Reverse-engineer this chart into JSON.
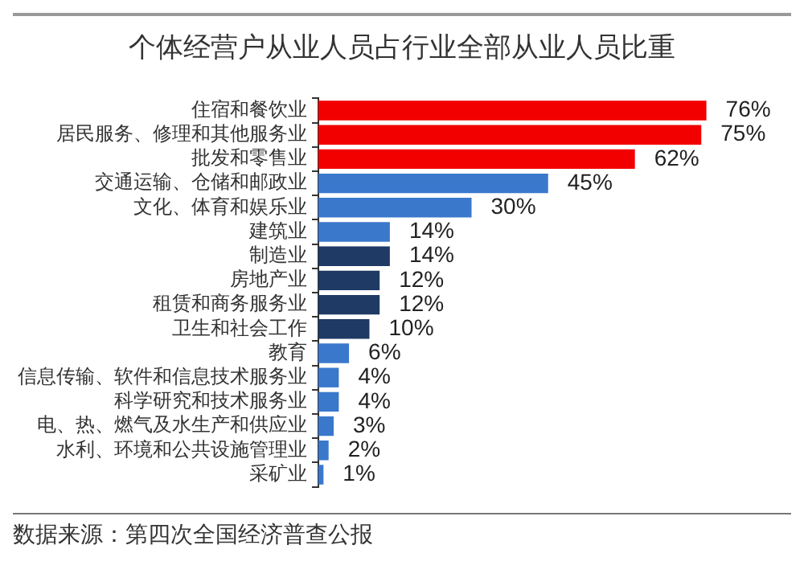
{
  "chart_data": {
    "type": "bar",
    "orientation": "horizontal",
    "title": "个体经营户从业人员占行业全部从业人员比重",
    "categories": [
      "住宿和餐饮业",
      "居民服务、修理和其他服务业",
      "批发和零售业",
      "交通运输、仓储和邮政业",
      "文化、体育和娱乐业",
      "建筑业",
      "制造业",
      "房地产业",
      "租赁和商务服务业",
      "卫生和社会工作",
      "教育",
      "信息传输、软件和信息技术服务业",
      "科学研究和技术服务业",
      "电、热、燃气及水生产和供应业",
      "水利、环境和公共设施管理业",
      "采矿业"
    ],
    "values": [
      76,
      75,
      62,
      45,
      30,
      14,
      14,
      12,
      12,
      10,
      6,
      4,
      4,
      3,
      2,
      1
    ],
    "value_labels": [
      "76%",
      "75%",
      "62%",
      "45%",
      "30%",
      "14%",
      "14%",
      "12%",
      "12%",
      "10%",
      "6%",
      "4%",
      "4%",
      "3%",
      "2%",
      "1%"
    ],
    "colors": [
      "#f20000",
      "#f20000",
      "#f20000",
      "#3a78cc",
      "#3a78cc",
      "#3a78cc",
      "#1f3a64",
      "#1f3a64",
      "#1f3a64",
      "#1f3a64",
      "#3a78cc",
      "#3a78cc",
      "#3a78cc",
      "#3a78cc",
      "#3a78cc",
      "#3a78cc"
    ],
    "tick_labels": "y",
    "grid": false,
    "legend": false,
    "annotations": [
      "数据来源：第四次全国经济普查公报"
    ]
  }
}
